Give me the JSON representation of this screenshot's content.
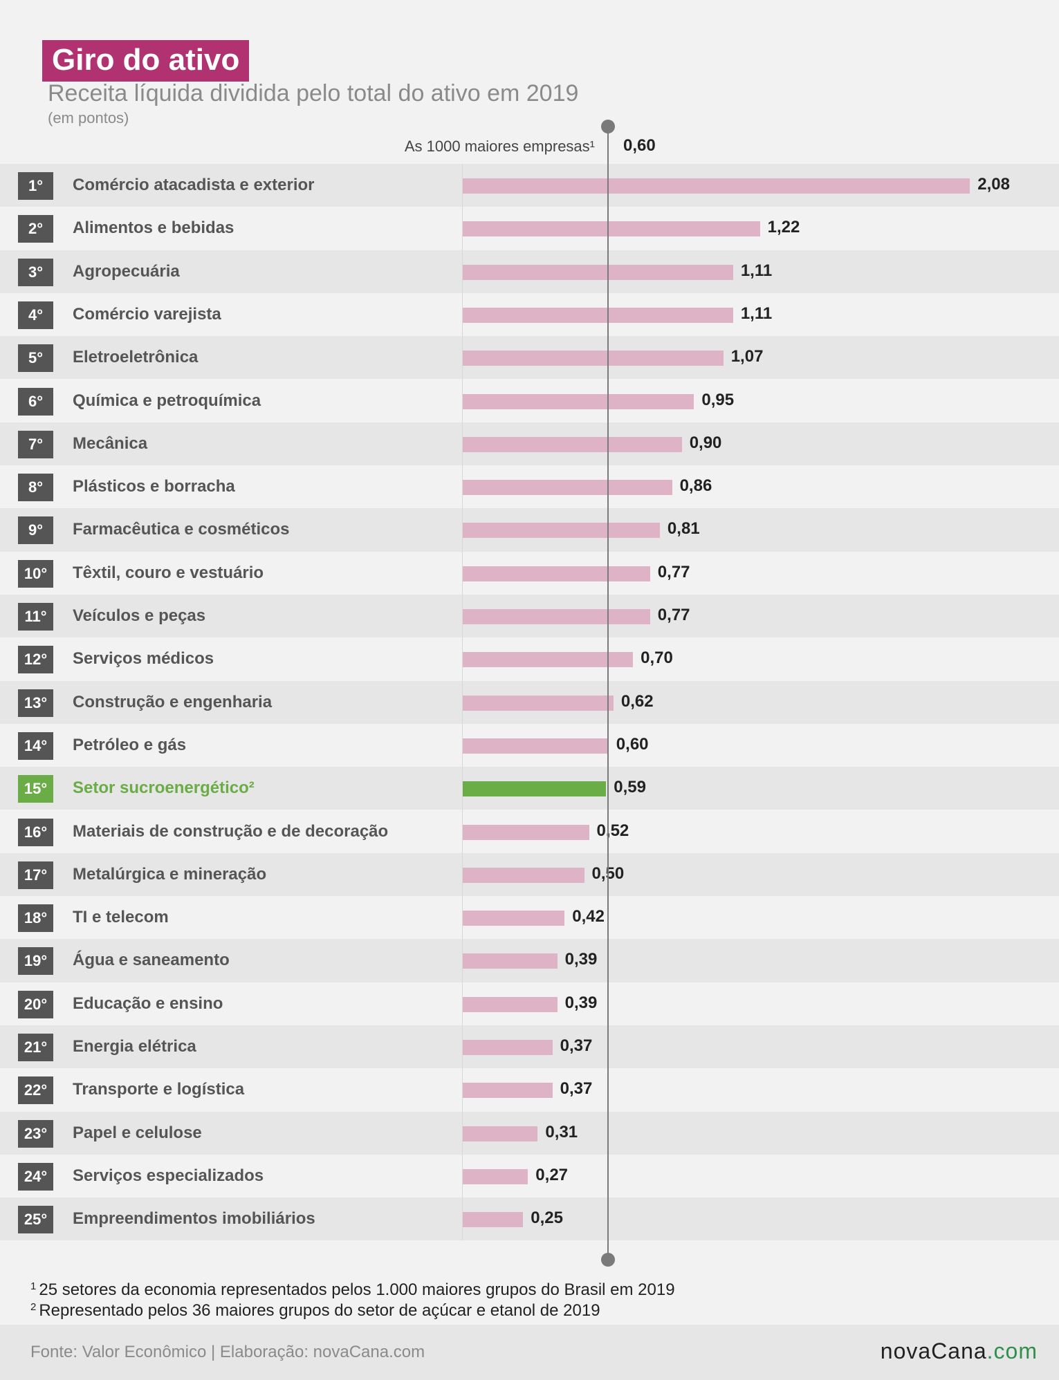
{
  "header": {
    "title": "Giro do ativo",
    "subtitle": "Receita líquida dividida pelo total do ativo em 2019",
    "unit": "(em pontos)"
  },
  "reference": {
    "label": "As 1000 maiores empresas¹",
    "value_text": "0,60",
    "value": 0.6
  },
  "colors": {
    "bar": "#dfb3c6",
    "highlight": "#6aac45",
    "title_bg": "#b03270",
    "rank_bg": "#555555"
  },
  "chart_data": {
    "type": "bar",
    "orientation": "horizontal",
    "title": "Giro do ativo",
    "subtitle": "Receita líquida dividida pelo total do ativo em 2019",
    "unit": "(em pontos)",
    "reference_line": {
      "label": "As 1000 maiores empresas¹",
      "value": 0.6
    },
    "highlighted_category": "Setor sucroenergético²",
    "categories": [
      "Comércio atacadista e exterior",
      "Alimentos e bebidas",
      "Agropecuária",
      "Comércio varejista",
      "Eletroeletrônica",
      "Química e petroquímica",
      "Mecânica",
      "Plásticos e borracha",
      "Farmacêutica e cosméticos",
      "Têxtil, couro e vestuário",
      "Veículos e peças",
      "Serviços médicos",
      "Construção e engenharia",
      "Petróleo e gás",
      "Setor sucroenergético²",
      "Materiais de construção e de decoração",
      "Metalúrgica e mineração",
      "TI e telecom",
      "Água e saneamento",
      "Educação e ensino",
      "Energia elétrica",
      "Transporte e logística",
      "Papel e celulose",
      "Serviços especializados",
      "Empreendimentos imobiliários"
    ],
    "ranks": [
      "1°",
      "2°",
      "3°",
      "4°",
      "5°",
      "6°",
      "7°",
      "8°",
      "9°",
      "10°",
      "11°",
      "12°",
      "13°",
      "14°",
      "15°",
      "16°",
      "17°",
      "18°",
      "19°",
      "20°",
      "21°",
      "22°",
      "23°",
      "24°",
      "25°"
    ],
    "values": [
      2.08,
      1.22,
      1.11,
      1.11,
      1.07,
      0.95,
      0.9,
      0.86,
      0.81,
      0.77,
      0.77,
      0.7,
      0.62,
      0.6,
      0.59,
      0.52,
      0.5,
      0.42,
      0.39,
      0.39,
      0.37,
      0.37,
      0.31,
      0.27,
      0.25
    ],
    "value_labels": [
      "2,08",
      "1,22",
      "1,11",
      "1,11",
      "1,07",
      "0,95",
      "0,90",
      "0,86",
      "0,81",
      "0,77",
      "0,77",
      "0,70",
      "0,62",
      "0,60",
      "0,59",
      "0,52",
      "0,50",
      "0,42",
      "0,39",
      "0,39",
      "0,37",
      "0,37",
      "0,31",
      "0,27",
      "0,25"
    ]
  },
  "footnotes": {
    "note1_marker": "1",
    "note1": "25 setores da economia representados pelos 1.000 maiores grupos do Brasil em 2019",
    "note2_marker": "2",
    "note2": "Representado pelos 36 maiores grupos do setor de açúcar e etanol de 2019"
  },
  "footer": {
    "source": "Fonte: Valor Econômico | Elaboração: novaCana.com",
    "brand_name": "novaCana",
    "brand_tld": ".com"
  }
}
